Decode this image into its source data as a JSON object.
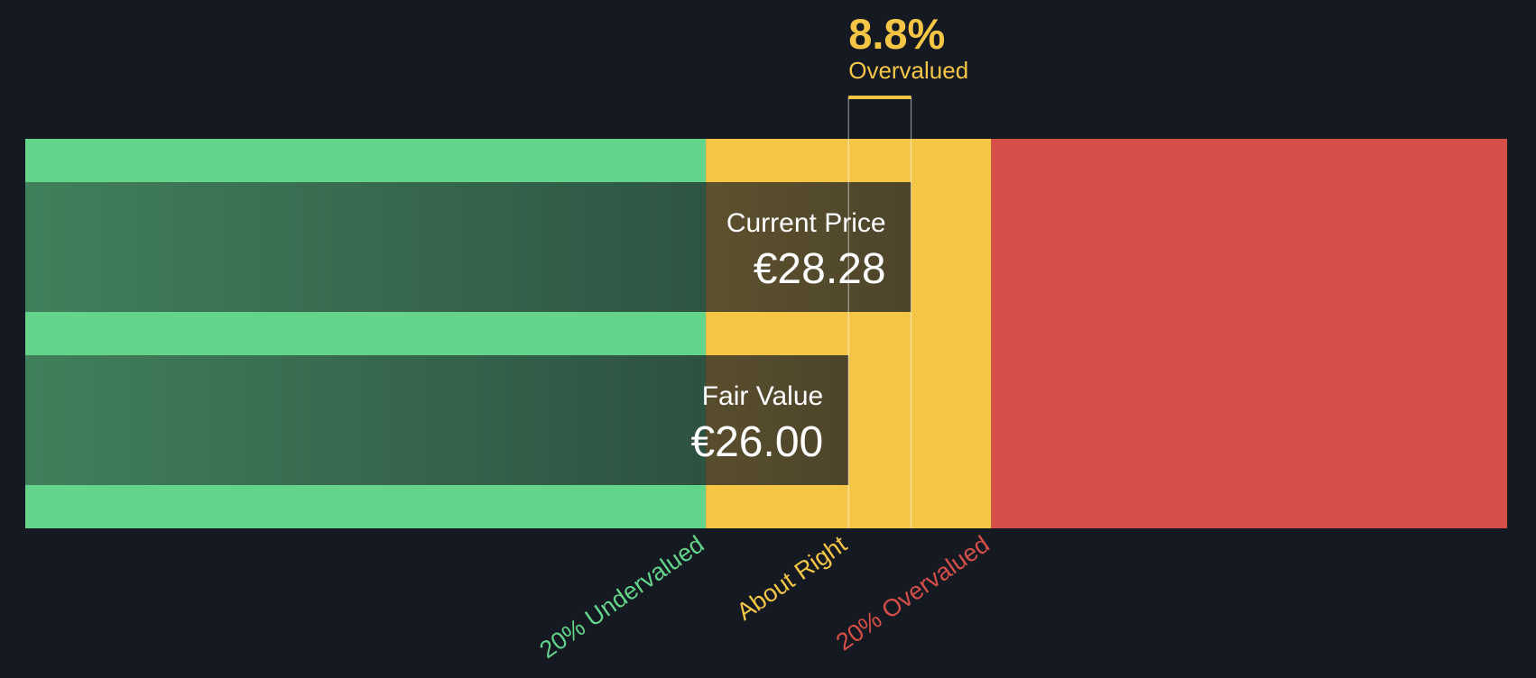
{
  "chart_data": {
    "type": "valuation",
    "xlim": [
      -4,
      50
    ],
    "zones": [
      {
        "label": "20% Undervalued",
        "start": -4,
        "end": 20.8,
        "color": "#64d48a"
      },
      {
        "label": "About Right",
        "start": 20.8,
        "end": 31.2,
        "color": "#f5c646"
      },
      {
        "label": "20% Overvalued",
        "start": 31.2,
        "end": 50,
        "color": "#d64f49"
      }
    ],
    "bars": [
      {
        "name": "Current Price",
        "value": 28.28,
        "value_label": "€28.28"
      },
      {
        "name": "Fair Value",
        "value": 26.0,
        "value_label": "€26.00"
      }
    ],
    "difference": {
      "value": 8.8,
      "label": "8.8%",
      "text": "Overvalued",
      "color": "#f5c646"
    }
  }
}
